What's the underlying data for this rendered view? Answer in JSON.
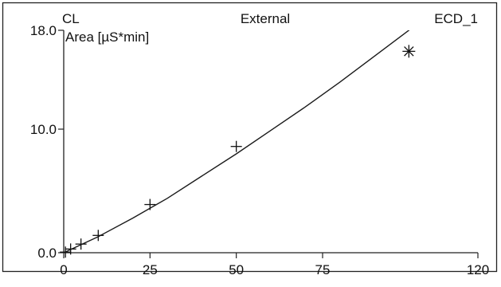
{
  "chart_data": {
    "type": "scatter",
    "header": {
      "left": "CL",
      "center": "External",
      "right": "ECD_1"
    },
    "ylabel": "Area  [µS*min]",
    "xlabel": "",
    "xlim": [
      0,
      120
    ],
    "ylim": [
      0,
      18
    ],
    "x_ticks": [
      0,
      25,
      50,
      75,
      120
    ],
    "x_tick_labels": [
      "0",
      "25",
      "50",
      "75",
      "120"
    ],
    "y_ticks": [
      0,
      10,
      18
    ],
    "y_tick_labels": [
      "0.0",
      "10.0",
      "18.0"
    ],
    "grid": false,
    "series": [
      {
        "marker": "cross",
        "x": [
          0.5,
          2,
          5,
          10,
          25,
          50
        ],
        "y": [
          0.05,
          0.3,
          0.7,
          1.4,
          3.9,
          8.6
        ]
      },
      {
        "marker": "asterisk",
        "x": [
          100
        ],
        "y": [
          16.3
        ]
      }
    ],
    "fit_curve": {
      "x": [
        0,
        10,
        20,
        30,
        40,
        50,
        60,
        70,
        80,
        90,
        100,
        102
      ],
      "y": [
        0,
        1.3,
        2.8,
        4.4,
        6.2,
        8.0,
        9.9,
        11.8,
        13.8,
        15.9,
        18.0,
        18.5
      ]
    }
  }
}
